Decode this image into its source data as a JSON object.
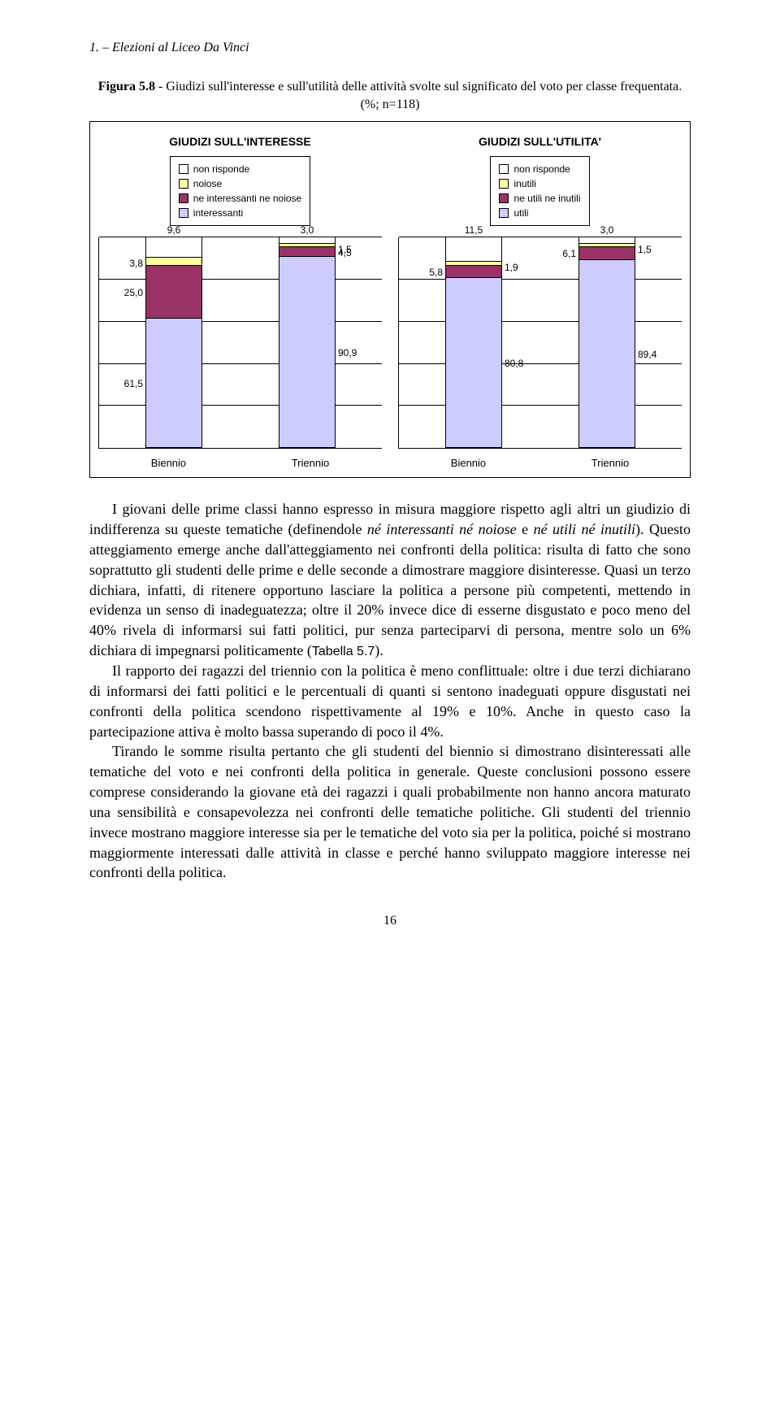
{
  "header": "1. – Elezioni al Liceo Da Vinci",
  "figure_caption_bold": "Figura 5.8",
  "figure_caption_rest": " - Giudizi sull'interesse e sull'utilità delle attività svolte  sul significato del voto per classe frequentata. (%; n=118)",
  "chart_left": {
    "title": "GIUDIZI SULL'INTERESSE",
    "legend": [
      {
        "label": "non risponde",
        "color": "#ffffff"
      },
      {
        "label": "noiose",
        "color": "#ffffa0"
      },
      {
        "label": "ne interessanti ne noiose",
        "color": "#993366"
      },
      {
        "label": "interessanti",
        "color": "#ccccff"
      }
    ],
    "bars": [
      {
        "x": "Biennio",
        "segments": [
          {
            "v": 9.6,
            "label": "9,6",
            "color": "#ffffff",
            "label_side": "top"
          },
          {
            "v": 3.8,
            "label": "3,8",
            "color": "#ffffa0",
            "label_side": "left"
          },
          {
            "v": 25.0,
            "label": "25,0",
            "color": "#993366",
            "label_side": "left"
          },
          {
            "v": 61.5,
            "label": "61,5",
            "color": "#ccccff",
            "label_side": "left"
          }
        ]
      },
      {
        "x": "Triennio",
        "segments": [
          {
            "v": 3.0,
            "label": "3,0",
            "color": "#ffffff",
            "label_side": "top"
          },
          {
            "v": 1.5,
            "label": "1,5",
            "color": "#ffffa0",
            "label_side": "right"
          },
          {
            "v": 4.5,
            "label": "4,5",
            "color": "#993366",
            "label_side": "right"
          },
          {
            "v": 90.9,
            "label": "90,9",
            "color": "#ccccff",
            "label_side": "right"
          }
        ]
      }
    ],
    "ymax": 100,
    "grid_steps": 5
  },
  "chart_right": {
    "title": "GIUDIZI SULL'UTILITA'",
    "legend": [
      {
        "label": "non risponde",
        "color": "#ffffff"
      },
      {
        "label": "inutili",
        "color": "#ffffa0"
      },
      {
        "label": "ne utili ne inutili",
        "color": "#993366"
      },
      {
        "label": "utili",
        "color": "#ccccff"
      }
    ],
    "bars": [
      {
        "x": "Biennio",
        "segments": [
          {
            "v": 11.5,
            "label": "11,5",
            "color": "#ffffff",
            "label_side": "top"
          },
          {
            "v": 1.9,
            "label": "1,9",
            "color": "#ffffa0",
            "label_side": "right"
          },
          {
            "v": 5.8,
            "label": "5,8",
            "color": "#993366",
            "label_side": "left"
          },
          {
            "v": 80.8,
            "label": "80,8",
            "color": "#ccccff",
            "label_side": "right"
          }
        ]
      },
      {
        "x": "Triennio",
        "segments": [
          {
            "v": 3.0,
            "label": "3,0",
            "color": "#ffffff",
            "label_side": "top"
          },
          {
            "v": 1.5,
            "label": "1,5",
            "color": "#ffffa0",
            "label_side": "right"
          },
          {
            "v": 6.1,
            "label": "6,1",
            "color": "#993366",
            "label_side": "left"
          },
          {
            "v": 89.4,
            "label": "89,4",
            "color": "#ccccff",
            "label_side": "right"
          }
        ]
      }
    ],
    "ymax": 100,
    "grid_steps": 5
  },
  "paragraphs": [
    {
      "indent": true,
      "html": "I giovani delle prime classi hanno espresso in misura maggiore rispetto agli altri un giudizio di indifferenza su queste tematiche (definendole <span class='italic'>né interessanti né noiose</span> e <span class='italic'>né utili né inutili</span>). Questo atteggiamento emerge anche dall'atteggiamento nei confronti della politica: risulta di fatto che sono soprattutto gli studenti delle prime e delle seconde a dimostrare maggiore disinteresse. Quasi un terzo dichiara, infatti, di ritenere opportuno lasciare la politica a persone più competenti, mettendo in evidenza un senso di inadeguatezza; oltre il 20% invece dice di esserne disgustato e poco meno del 40% rivela di informarsi sui fatti politici, pur senza parteciparvi di persona, mentre solo un 6% dichiara di impegnarsi politicamente (<span class='tab-ref'>Tabella 5.7</span>)."
    },
    {
      "indent": true,
      "html": "Il rapporto dei ragazzi del triennio con la politica è meno conflittuale: oltre i due terzi dichiarano di informarsi dei fatti politici e le percentuali di quanti si sentono inadeguati oppure disgustati nei confronti della politica scendono rispettivamente al 19% e 10%.  Anche in questo caso la partecipazione attiva è molto bassa superando di poco il 4%."
    },
    {
      "indent": true,
      "html": "Tirando le somme risulta pertanto che gli studenti del biennio si dimostrano disinteressati alle tematiche del voto e nei confronti della politica in generale. Queste conclusioni possono essere comprese considerando la giovane età dei ragazzi i quali probabilmente non hanno ancora maturato una sensibilità e consapevolezza nei confronti delle tematiche politiche. Gli studenti del triennio invece mostrano maggiore interesse sia per le tematiche del voto sia per la politica, poiché si mostrano maggiormente interessati dalle attività in classe e perché hanno sviluppato maggiore interesse nei confronti della politica."
    }
  ],
  "page_number": "16"
}
